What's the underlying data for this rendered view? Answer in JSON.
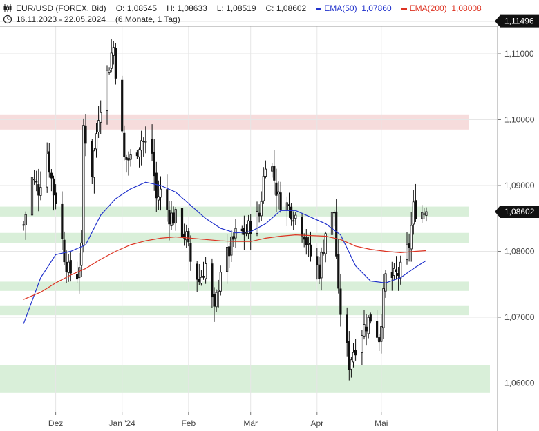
{
  "header": {
    "symbol": "EUR/USD (FOREX, Bid)",
    "open": "O: 1,08545",
    "high": "H: 1,08633",
    "low": "L: 1,08519",
    "close": "C: 1,08602",
    "ema50_label": "EMA(50)",
    "ema50_value": "1,07860",
    "ema200_label": "EMA(200)",
    "ema200_value": "1,08008",
    "date_range": "16.11.2023 - 22.05.2024",
    "period": "(6 Monate, 1 Tag)",
    "icons": {
      "chart_type": "candlestick-icon",
      "clock": "clock-icon"
    }
  },
  "colors": {
    "ema50": "#2233cc",
    "ema200": "#dd3322",
    "candle": "#111111",
    "zone_green": "#d9efd9",
    "zone_red": "#f6dcdc",
    "price_box": "#111111",
    "grid": "#e6e6e6"
  },
  "chart_data": {
    "type": "candlestick",
    "title": "EUR/USD (FOREX, Bid)",
    "x_range": [
      "2023-11-16",
      "2024-05-22"
    ],
    "ylim": [
      1.0555,
      1.1173
    ],
    "grid": true,
    "y_ticks": [
      "1,06000",
      "1,07000",
      "1,08000",
      "1,09000",
      "1,10000",
      "1,11000"
    ],
    "y_tick_values": [
      1.06,
      1.07,
      1.08,
      1.09,
      1.1,
      1.11
    ],
    "x_ticks": [
      {
        "label": "Dez",
        "date": "2023-12-01"
      },
      {
        "label": "Jan '24",
        "date": "2024-01-01"
      },
      {
        "label": "Feb",
        "date": "2024-02-01"
      },
      {
        "label": "Mär",
        "date": "2024-03-01"
      },
      {
        "label": "Apr",
        "date": "2024-04-01"
      },
      {
        "label": "Mai",
        "date": "2024-05-01"
      }
    ],
    "last_price": {
      "label": "1,08602",
      "value": 1.08602
    },
    "high_marker": {
      "label": "1,11496",
      "value": 1.11496
    },
    "zones": [
      {
        "color": "red",
        "low": 1.0985,
        "high": 1.1007
      },
      {
        "color": "green",
        "low": 1.0853,
        "high": 1.0868
      },
      {
        "color": "green",
        "low": 1.0813,
        "high": 1.0828
      },
      {
        "color": "green",
        "low": 1.074,
        "high": 1.0754
      },
      {
        "color": "green",
        "low": 1.0703,
        "high": 1.0717
      },
      {
        "color": "green",
        "low": 1.0585,
        "high": 1.0627
      }
    ],
    "close_series": {
      "name": "EUR/USD",
      "points": [
        [
          "2023-11-16",
          1.084
        ],
        [
          "2023-11-20",
          1.091
        ],
        [
          "2023-11-23",
          1.0895
        ],
        [
          "2023-11-27",
          1.095
        ],
        [
          "2023-11-30",
          1.089
        ],
        [
          "2023-12-01",
          1.088
        ],
        [
          "2023-12-05",
          1.0795
        ],
        [
          "2023-12-07",
          1.077
        ],
        [
          "2023-12-11",
          1.0765
        ],
        [
          "2023-12-13",
          1.08
        ],
        [
          "2023-12-14",
          1.099
        ],
        [
          "2023-12-18",
          1.092
        ],
        [
          "2023-12-21",
          1.101
        ],
        [
          "2023-12-27",
          1.11
        ],
        [
          "2023-12-28",
          1.111
        ],
        [
          "2024-01-02",
          1.094
        ],
        [
          "2024-01-05",
          1.094
        ],
        [
          "2024-01-10",
          1.097
        ],
        [
          "2024-01-15",
          1.095
        ],
        [
          "2024-01-17",
          1.088
        ],
        [
          "2024-01-19",
          1.089
        ],
        [
          "2024-01-23",
          1.0855
        ],
        [
          "2024-01-26",
          1.085
        ],
        [
          "2024-01-31",
          1.082
        ],
        [
          "2024-02-02",
          1.0785
        ],
        [
          "2024-02-06",
          1.0755
        ],
        [
          "2024-02-09",
          1.078
        ],
        [
          "2024-02-13",
          1.0705
        ],
        [
          "2024-02-16",
          1.0775
        ],
        [
          "2024-02-20",
          1.08
        ],
        [
          "2024-02-23",
          1.0825
        ],
        [
          "2024-02-28",
          1.083
        ],
        [
          "2024-03-01",
          1.084
        ],
        [
          "2024-03-05",
          1.0855
        ],
        [
          "2024-03-08",
          1.094
        ],
        [
          "2024-03-11",
          1.0925
        ],
        [
          "2024-03-14",
          1.088
        ],
        [
          "2024-03-18",
          1.087
        ],
        [
          "2024-03-21",
          1.086
        ],
        [
          "2024-03-26",
          1.083
        ],
        [
          "2024-03-28",
          1.08
        ],
        [
          "2024-04-02",
          1.077
        ],
        [
          "2024-04-05",
          1.083
        ],
        [
          "2024-04-09",
          1.086
        ],
        [
          "2024-04-11",
          1.073
        ],
        [
          "2024-04-16",
          1.063
        ],
        [
          "2024-04-18",
          1.065
        ],
        [
          "2024-04-22",
          1.068
        ],
        [
          "2024-04-26",
          1.07
        ],
        [
          "2024-04-30",
          1.067
        ],
        [
          "2024-05-03",
          1.076
        ],
        [
          "2024-05-07",
          1.076
        ],
        [
          "2024-05-10",
          1.077
        ],
        [
          "2024-05-14",
          1.081
        ],
        [
          "2024-05-16",
          1.0865
        ],
        [
          "2024-05-20",
          1.086
        ],
        [
          "2024-05-22",
          1.08602
        ]
      ]
    },
    "series": [
      {
        "name": "EMA(50)",
        "color": "#2233cc",
        "points": [
          [
            "2023-11-16",
            1.069
          ],
          [
            "2023-11-24",
            1.076
          ],
          [
            "2023-12-01",
            1.0795
          ],
          [
            "2023-12-08",
            1.08
          ],
          [
            "2023-12-15",
            1.081
          ],
          [
            "2023-12-22",
            1.0855
          ],
          [
            "2023-12-29",
            1.088
          ],
          [
            "2024-01-05",
            1.0895
          ],
          [
            "2024-01-12",
            1.0905
          ],
          [
            "2024-01-19",
            1.09
          ],
          [
            "2024-01-26",
            1.089
          ],
          [
            "2024-02-02",
            1.087
          ],
          [
            "2024-02-09",
            1.085
          ],
          [
            "2024-02-16",
            1.0835
          ],
          [
            "2024-02-23",
            1.0828
          ],
          [
            "2024-03-01",
            1.083
          ],
          [
            "2024-03-08",
            1.0842
          ],
          [
            "2024-03-15",
            1.0862
          ],
          [
            "2024-03-22",
            1.0862
          ],
          [
            "2024-03-29",
            1.0852
          ],
          [
            "2024-04-05",
            1.0842
          ],
          [
            "2024-04-12",
            1.0825
          ],
          [
            "2024-04-19",
            1.0778
          ],
          [
            "2024-04-26",
            1.0755
          ],
          [
            "2024-05-03",
            1.0752
          ],
          [
            "2024-05-10",
            1.076
          ],
          [
            "2024-05-17",
            1.0776
          ],
          [
            "2024-05-22",
            1.0786
          ]
        ]
      },
      {
        "name": "EMA(200)",
        "color": "#dd3322",
        "points": [
          [
            "2023-11-16",
            1.0727
          ],
          [
            "2023-11-24",
            1.0738
          ],
          [
            "2023-12-01",
            1.0752
          ],
          [
            "2023-12-08",
            1.0764
          ],
          [
            "2023-12-15",
            1.0774
          ],
          [
            "2023-12-22",
            1.0788
          ],
          [
            "2023-12-29",
            1.08
          ],
          [
            "2024-01-05",
            1.081
          ],
          [
            "2024-01-12",
            1.0816
          ],
          [
            "2024-01-19",
            1.082
          ],
          [
            "2024-01-26",
            1.0822
          ],
          [
            "2024-02-02",
            1.082
          ],
          [
            "2024-02-09",
            1.0818
          ],
          [
            "2024-02-16",
            1.0816
          ],
          [
            "2024-02-23",
            1.0815
          ],
          [
            "2024-03-01",
            1.0815
          ],
          [
            "2024-03-08",
            1.082
          ],
          [
            "2024-03-15",
            1.0823
          ],
          [
            "2024-03-22",
            1.0825
          ],
          [
            "2024-03-29",
            1.0824
          ],
          [
            "2024-04-05",
            1.0823
          ],
          [
            "2024-04-12",
            1.0818
          ],
          [
            "2024-04-19",
            1.0808
          ],
          [
            "2024-04-26",
            1.0803
          ],
          [
            "2024-05-03",
            1.08
          ],
          [
            "2024-05-10",
            1.0798
          ],
          [
            "2024-05-17",
            1.08
          ],
          [
            "2024-05-22",
            1.0801
          ]
        ]
      }
    ]
  }
}
